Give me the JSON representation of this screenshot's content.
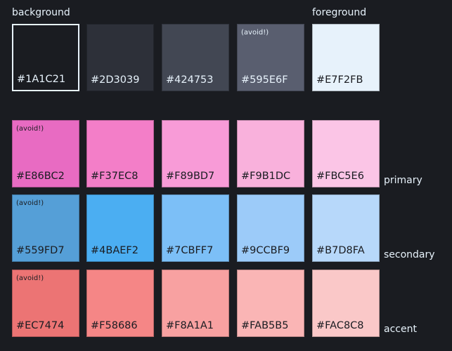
{
  "labels": {
    "background": "background",
    "foreground": "foreground",
    "primary": "primary",
    "secondary": "secondary",
    "accent": "accent"
  },
  "avoid_note": "(avoid!)",
  "rows": [
    {
      "swatches": [
        {
          "hex": "#1A1C21",
          "avoid": false
        },
        {
          "hex": "#2D3039",
          "avoid": false
        },
        {
          "hex": "#424753",
          "avoid": false
        },
        {
          "hex": "#595E6F",
          "avoid": true
        },
        {
          "hex": "#E7F2FB",
          "avoid": false
        }
      ]
    },
    {
      "swatches": [
        {
          "hex": "#E86BC2",
          "avoid": true
        },
        {
          "hex": "#F37EC8",
          "avoid": false
        },
        {
          "hex": "#F89BD7",
          "avoid": false
        },
        {
          "hex": "#F9B1DC",
          "avoid": false
        },
        {
          "hex": "#FBC5E6",
          "avoid": false
        }
      ]
    },
    {
      "swatches": [
        {
          "hex": "#559FD7",
          "avoid": true
        },
        {
          "hex": "#4BAEF2",
          "avoid": false
        },
        {
          "hex": "#7CBFF7",
          "avoid": false
        },
        {
          "hex": "#9CCBF9",
          "avoid": false
        },
        {
          "hex": "#B7D8FA",
          "avoid": false
        }
      ]
    },
    {
      "swatches": [
        {
          "hex": "#EC7474",
          "avoid": true
        },
        {
          "hex": "#F58686",
          "avoid": false
        },
        {
          "hex": "#F8A1A1",
          "avoid": false
        },
        {
          "hex": "#FAB5B5",
          "avoid": false
        },
        {
          "hex": "#FAC8C8",
          "avoid": false
        }
      ]
    }
  ]
}
